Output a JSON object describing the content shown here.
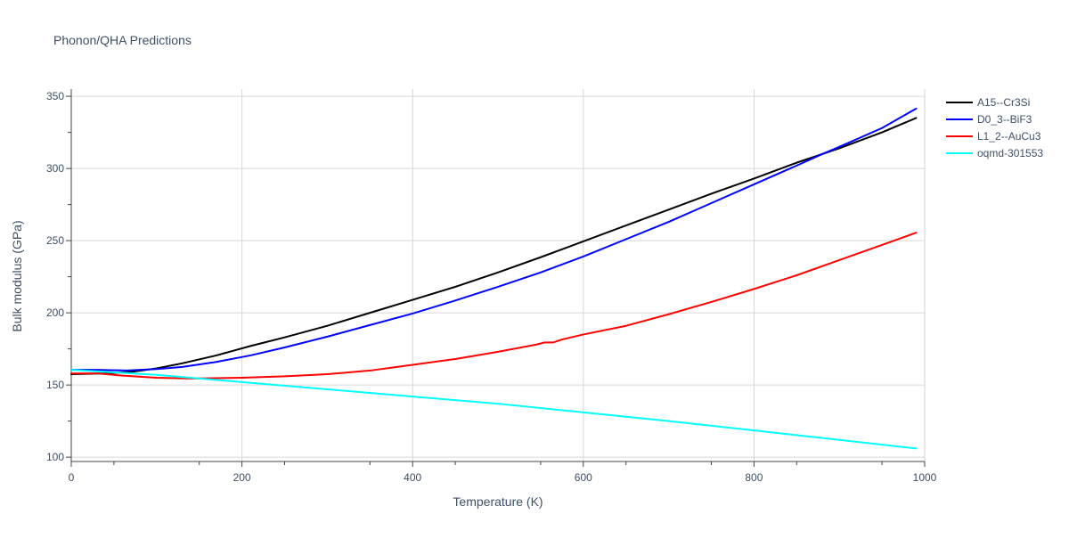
{
  "chart_data": {
    "type": "line",
    "title": "Phonon/QHA Predictions",
    "xlabel": "Temperature (K)",
    "ylabel": "Bulk modulus (GPa)",
    "xlim": [
      0,
      1000
    ],
    "ylim": [
      97,
      355
    ],
    "x_ticks": [
      0,
      200,
      400,
      600,
      800,
      1000
    ],
    "y_ticks": [
      100,
      150,
      200,
      250,
      300,
      350
    ],
    "grid": true,
    "legend_position": "top-right",
    "series": [
      {
        "name": "A15--Cr3Si",
        "color": "#000000",
        "points": [
          [
            0,
            157.5
          ],
          [
            40,
            158
          ],
          [
            70,
            159
          ],
          [
            100,
            161.5
          ],
          [
            130,
            165
          ],
          [
            170,
            170.5
          ],
          [
            210,
            177
          ],
          [
            250,
            183
          ],
          [
            300,
            191
          ],
          [
            350,
            200
          ],
          [
            400,
            209
          ],
          [
            450,
            218
          ],
          [
            500,
            228
          ],
          [
            550,
            238.5
          ],
          [
            600,
            249.5
          ],
          [
            650,
            260.5
          ],
          [
            700,
            271.5
          ],
          [
            750,
            282.5
          ],
          [
            800,
            293
          ],
          [
            850,
            304
          ],
          [
            900,
            314
          ],
          [
            950,
            325
          ],
          [
            990,
            335
          ]
        ]
      },
      {
        "name": "D0_3--BiF3",
        "color": "#0000ff",
        "points": [
          [
            0,
            160.5
          ],
          [
            30,
            160.5
          ],
          [
            65,
            160
          ],
          [
            100,
            161
          ],
          [
            130,
            162.5
          ],
          [
            170,
            166
          ],
          [
            210,
            170.5
          ],
          [
            250,
            176
          ],
          [
            300,
            183.5
          ],
          [
            350,
            191.5
          ],
          [
            400,
            199.5
          ],
          [
            450,
            208.5
          ],
          [
            500,
            218
          ],
          [
            550,
            228
          ],
          [
            600,
            239
          ],
          [
            650,
            251
          ],
          [
            700,
            263
          ],
          [
            750,
            276
          ],
          [
            800,
            289
          ],
          [
            850,
            302
          ],
          [
            880,
            310
          ],
          [
            900,
            315
          ],
          [
            950,
            328
          ],
          [
            990,
            341.5
          ]
        ]
      },
      {
        "name": "L1_2--AuCu3",
        "color": "#ff0000",
        "points": [
          [
            0,
            158
          ],
          [
            30,
            158
          ],
          [
            60,
            156.5
          ],
          [
            100,
            155
          ],
          [
            140,
            154.5
          ],
          [
            200,
            155
          ],
          [
            250,
            156
          ],
          [
            300,
            157.5
          ],
          [
            350,
            160
          ],
          [
            400,
            164
          ],
          [
            450,
            168
          ],
          [
            500,
            173
          ],
          [
            545,
            178
          ],
          [
            555,
            179.5
          ],
          [
            565,
            179.5
          ],
          [
            575,
            181.5
          ],
          [
            600,
            185
          ],
          [
            650,
            191
          ],
          [
            700,
            199
          ],
          [
            750,
            207.5
          ],
          [
            800,
            216.5
          ],
          [
            850,
            226
          ],
          [
            900,
            236.5
          ],
          [
            950,
            247
          ],
          [
            990,
            255.5
          ]
        ]
      },
      {
        "name": "oqmd-301553",
        "color": "#00ffff",
        "points": [
          [
            0,
            160.5
          ],
          [
            100,
            157
          ],
          [
            200,
            152
          ],
          [
            300,
            147
          ],
          [
            400,
            142
          ],
          [
            500,
            137
          ],
          [
            600,
            131
          ],
          [
            700,
            125
          ],
          [
            800,
            118.5
          ],
          [
            900,
            112
          ],
          [
            990,
            106
          ]
        ]
      }
    ]
  }
}
